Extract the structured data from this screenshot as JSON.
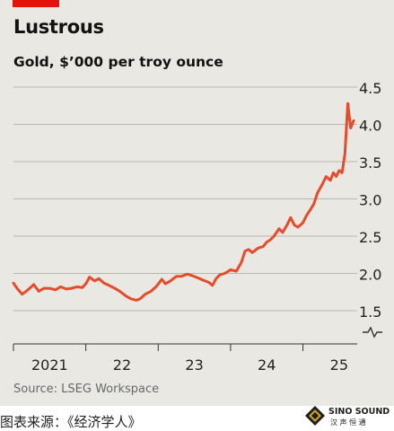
{
  "header": {
    "title": "Lustrous",
    "subtitle": "Gold, $’000 per troy ounce"
  },
  "footer": {
    "source": "Source: LSEG Workspace",
    "caption": "图表来源：《经济学人》"
  },
  "logo": {
    "name": "SINO SOUND",
    "subtext": "汉 声 恒 通"
  },
  "colors": {
    "accent": "#e3120b",
    "line": "#e64b2b",
    "background": "#e9e8e2",
    "grid": "#b7b6b0"
  },
  "chart_data": {
    "type": "line",
    "title": "Lustrous",
    "subtitle": "Gold, $’000 per troy ounce",
    "xlabel": "",
    "ylabel": "",
    "y_axis_side": "right",
    "y_axis_broken": true,
    "ylim": [
      1.5,
      4.5
    ],
    "yticks": [
      "1.5",
      "2.0",
      "2.5",
      "3.0",
      "3.5",
      "4.0",
      "4.5"
    ],
    "xlim": [
      2021.0,
      2025.75
    ],
    "xtick_labels": [
      {
        "label": "2021",
        "x": 2021.5
      },
      {
        "label": "22",
        "x": 2022.5
      },
      {
        "label": "23",
        "x": 2023.5
      },
      {
        "label": "24",
        "x": 2024.5
      },
      {
        "label": "25",
        "x": 2025.5
      }
    ],
    "grid": true,
    "series": [
      {
        "name": "",
        "x": [
          2021.0,
          2021.05,
          2021.12,
          2021.2,
          2021.28,
          2021.35,
          2021.42,
          2021.5,
          2021.58,
          2021.65,
          2021.73,
          2021.8,
          2021.88,
          2021.95,
          2022.0,
          2022.05,
          2022.12,
          2022.18,
          2022.25,
          2022.32,
          2022.4,
          2022.47,
          2022.55,
          2022.62,
          2022.7,
          2022.75,
          2022.82,
          2022.9,
          2022.97,
          2023.05,
          2023.1,
          2023.17,
          2023.25,
          2023.32,
          2023.4,
          2023.47,
          2023.55,
          2023.62,
          2023.7,
          2023.75,
          2023.8,
          2023.85,
          2023.92,
          2024.0,
          2024.08,
          2024.15,
          2024.2,
          2024.25,
          2024.3,
          2024.38,
          2024.45,
          2024.5,
          2024.55,
          2024.6,
          2024.67,
          2024.72,
          2024.78,
          2024.83,
          2024.88,
          2024.93,
          2025.0,
          2025.05,
          2025.1,
          2025.15,
          2025.2,
          2025.27,
          2025.32,
          2025.38,
          2025.42,
          2025.46,
          2025.5,
          2025.54,
          2025.58,
          2025.62,
          2025.66,
          2025.7
        ],
        "values": [
          1.87,
          1.8,
          1.72,
          1.78,
          1.85,
          1.76,
          1.8,
          1.8,
          1.78,
          1.82,
          1.79,
          1.8,
          1.82,
          1.81,
          1.86,
          1.95,
          1.9,
          1.93,
          1.87,
          1.84,
          1.8,
          1.76,
          1.7,
          1.66,
          1.64,
          1.66,
          1.72,
          1.76,
          1.82,
          1.92,
          1.86,
          1.9,
          1.96,
          1.96,
          1.99,
          1.97,
          1.94,
          1.91,
          1.88,
          1.84,
          1.93,
          1.98,
          2.0,
          2.05,
          2.03,
          2.15,
          2.3,
          2.32,
          2.28,
          2.34,
          2.36,
          2.42,
          2.45,
          2.5,
          2.6,
          2.55,
          2.65,
          2.75,
          2.65,
          2.62,
          2.68,
          2.78,
          2.85,
          2.93,
          3.08,
          3.2,
          3.3,
          3.25,
          3.35,
          3.3,
          3.38,
          3.35,
          3.6,
          4.28,
          3.95,
          4.05
        ]
      }
    ]
  }
}
